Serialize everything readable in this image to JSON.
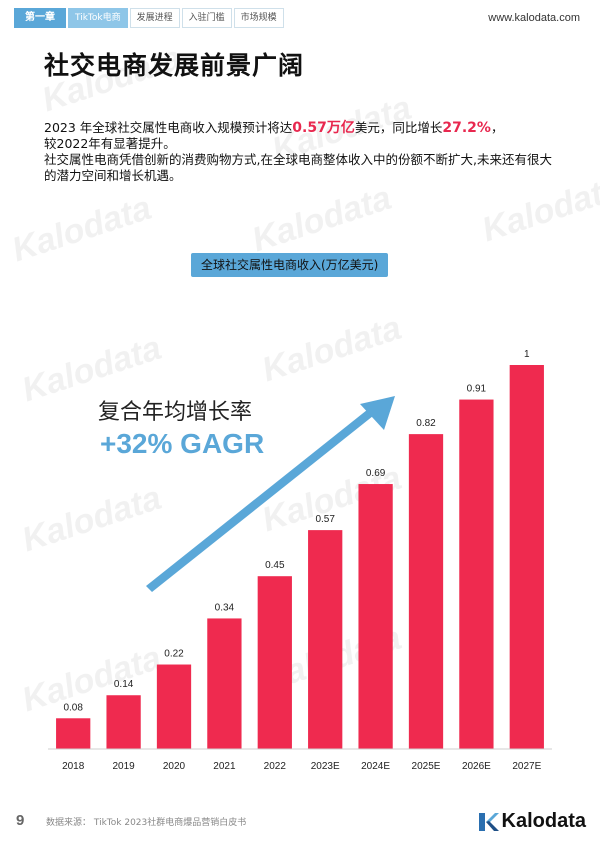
{
  "nav": {
    "chapter": "第一章",
    "tabs": [
      "TikTok电商",
      "发展进程",
      "入驻门槛",
      "市场规模"
    ]
  },
  "site_url": "www.kalodata.com",
  "watermark": "Kalodata",
  "page_title": "社交电商发展前景广阔",
  "intro": {
    "line1_pre": "2023 年全球社交属性电商收入规模预计将达",
    "line1_hl1": "0.57万亿",
    "line1_mid": "美元，同比增长",
    "line1_hl2": "27.2%",
    "line1_post": "，",
    "line2": "较2022年有显著提升。",
    "line3": "社交属性电商凭借创新的消费购物方式,在全球电商整体收入中的份额不断扩大,未来还有很大的潜力空间和增长机遇。"
  },
  "cagr": {
    "label": "复合年均增长率",
    "value": "+32% GAGR"
  },
  "colors": {
    "bar": "#ef2a4f",
    "accent": "#5aa7d8",
    "arrow": "#5aa7d8"
  },
  "chart_data": {
    "type": "bar",
    "title": "全球社交属性电商收入(万亿美元)",
    "categories": [
      "2018",
      "2019",
      "2020",
      "2021",
      "2022",
      "2023E",
      "2024E",
      "2025E",
      "2026E",
      "2027E"
    ],
    "values": [
      0.08,
      0.14,
      0.22,
      0.34,
      0.45,
      0.57,
      0.69,
      0.82,
      0.91,
      1
    ],
    "ylim": [
      0,
      1
    ],
    "grid": false,
    "xlabel": "",
    "ylabel": ""
  },
  "footer": {
    "page_number": "9",
    "source": "数据来源：   TikTok 2023社群电商爆品营销白皮书",
    "logo_text": "Kalodata"
  }
}
